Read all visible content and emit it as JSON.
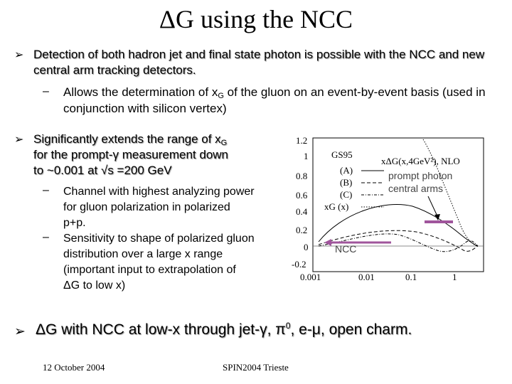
{
  "title": "ΔG using the NCC",
  "bullet1": {
    "text": "Detection of both hadron jet and final state photon is possible with the NCC and new central arm tracking detectors.",
    "sub": {
      "before": "Allows the determination of x",
      "subscript": "G",
      "after": " of the gluon on an event-by-event basis (used in conjunction with silicon vertex)"
    }
  },
  "bullet2": {
    "line1_before": "Significantly extends the range of x",
    "line1_subscript": "G",
    "line2": "for the prompt-γ measurement down",
    "line3": "to ~0.001 at √s =200 GeV",
    "sub1": "Channel with highest analyzing power for gluon polarization in polarized p+p.",
    "sub2": "Sensitivity to shape of polarized gluon distribution over a large x range (important input to extrapolation of ΔG to low x)"
  },
  "bullet3": {
    "before": "ΔG with NCC at low-x through jet-γ, π",
    "sup": "0",
    "after": ", e-μ, open charm."
  },
  "footer": {
    "date": "12 October 2004",
    "conference": "SPIN2004 Trieste"
  },
  "figure": {
    "model_label": "GS95",
    "ylabel": "xΔG(x,4GeV²), NLO",
    "legend": [
      "(A)",
      "(B)",
      "(C)",
      "xG (x)"
    ],
    "annotation_prompt_photon": "prompt photon",
    "annotation_central_arms": "central arms",
    "annotation_ncc": "NCC",
    "y_ticks": [
      "1.2",
      "1",
      "0.8",
      "0.6",
      "0.4",
      "0.2",
      "0",
      "-0.2"
    ],
    "x_ticks": [
      "0.001",
      "0.01",
      "0.1",
      "1"
    ]
  },
  "colors": {
    "marker": "#a0559c",
    "bullet_shadow": "#9a9a9a"
  }
}
